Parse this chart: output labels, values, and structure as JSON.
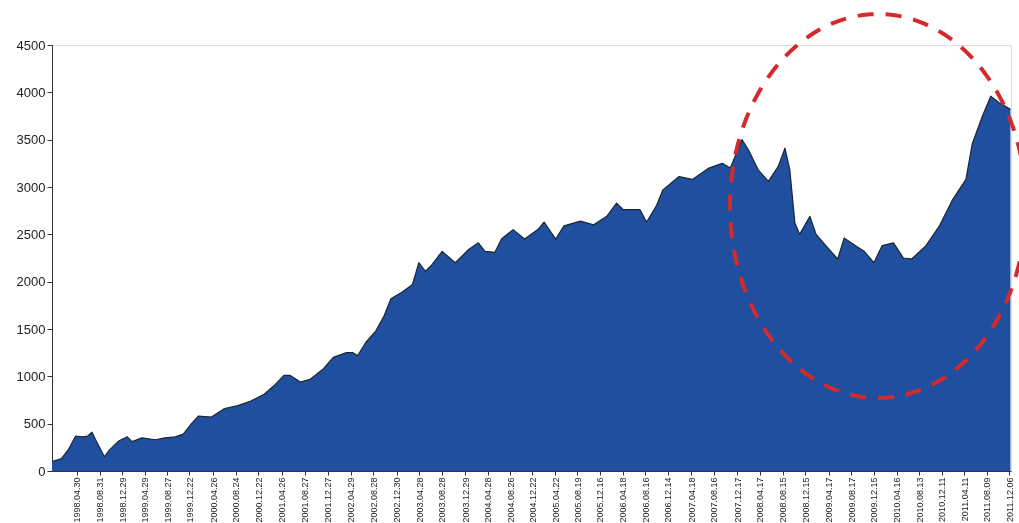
{
  "chart_data": {
    "type": "area",
    "xlim": [
      "1997-12-20",
      "2011-12-15"
    ],
    "ylim": [
      0,
      4500
    ],
    "yticks": [
      0,
      500,
      1000,
      1500,
      2000,
      2500,
      3000,
      3500,
      4000,
      4500
    ],
    "xticks": [
      {
        "value": "1998-04-30",
        "label": "1998.04.30"
      },
      {
        "value": "1998-08-31",
        "label": "1998.08.31"
      },
      {
        "value": "1998-12-29",
        "label": "1998.12.29"
      },
      {
        "value": "1999-04-29",
        "label": "1999.04.29"
      },
      {
        "value": "1999-08-27",
        "label": "1999.08.27"
      },
      {
        "value": "1999-12-22",
        "label": "1999.12.22"
      },
      {
        "value": "2000-04-26",
        "label": "2000.04.26"
      },
      {
        "value": "2000-08-24",
        "label": "2000.08.24"
      },
      {
        "value": "2000-12-22",
        "label": "2000.12.22"
      },
      {
        "value": "2001-04-26",
        "label": "2001.04.26"
      },
      {
        "value": "2001-08-27",
        "label": "2001.08.27"
      },
      {
        "value": "2001-12-27",
        "label": "2001.12.27"
      },
      {
        "value": "2002-04-29",
        "label": "2002.04.29"
      },
      {
        "value": "2002-08-28",
        "label": "2002.08.28"
      },
      {
        "value": "2002-12-30",
        "label": "2002.12.30"
      },
      {
        "value": "2003-04-28",
        "label": "2003.04.28"
      },
      {
        "value": "2003-08-28",
        "label": "2003.08.28"
      },
      {
        "value": "2003-12-29",
        "label": "2003.12.29"
      },
      {
        "value": "2004-04-28",
        "label": "2004.04.28"
      },
      {
        "value": "2004-08-26",
        "label": "2004.08.26"
      },
      {
        "value": "2004-12-22",
        "label": "2004.12.22"
      },
      {
        "value": "2005-04-22",
        "label": "2005.04.22"
      },
      {
        "value": "2005-08-19",
        "label": "2005.08.19"
      },
      {
        "value": "2005-12-16",
        "label": "2005.12.16"
      },
      {
        "value": "2006-04-18",
        "label": "2006.04.18"
      },
      {
        "value": "2006-08-16",
        "label": "2006.08.16"
      },
      {
        "value": "2006-12-14",
        "label": "2006.12.14"
      },
      {
        "value": "2007-04-18",
        "label": "2007.04.18"
      },
      {
        "value": "2007-08-16",
        "label": "2007.08.16"
      },
      {
        "value": "2007-12-17",
        "label": "2007.12.17"
      },
      {
        "value": "2008-04-17",
        "label": "2008.04.17"
      },
      {
        "value": "2008-08-15",
        "label": "2008.08.15"
      },
      {
        "value": "2008-12-15",
        "label": "2008.12.15"
      },
      {
        "value": "2009-04-17",
        "label": "2009.04.17"
      },
      {
        "value": "2009-08-17",
        "label": "2009.08.17"
      },
      {
        "value": "2009-12-15",
        "label": "2009.12.15"
      },
      {
        "value": "2010-04-16",
        "label": "2010.04.16"
      },
      {
        "value": "2010-08-13",
        "label": "2010.08.13"
      },
      {
        "value": "2010-12-11",
        "label": "2010.12.11"
      },
      {
        "value": "2011-04-11",
        "label": "2011.04.11"
      },
      {
        "value": "2011-08-09",
        "label": "2011.08.09"
      },
      {
        "value": "2011-12-06",
        "label": "2011.12.06"
      }
    ],
    "grid": false,
    "series": [
      {
        "color": "#1f4f9e",
        "x": [
          "1997-12-20",
          "1998-02-08",
          "1998-03-15",
          "1998-04-25",
          "1998-06-02",
          "1998-06-28",
          "1998-07-21",
          "1998-08-12",
          "1998-09-25",
          "1998-10-21",
          "1998-12-12",
          "1999-01-25",
          "1999-02-20",
          "1999-04-13",
          "1999-06-23",
          "1999-08-15",
          "1999-10-07",
          "1999-11-19",
          "2000-01-02",
          "2000-02-07",
          "2000-04-17",
          "2000-06-26",
          "2000-09-04",
          "2000-11-13",
          "2001-01-23",
          "2001-03-16",
          "2001-05-08",
          "2001-06-11",
          "2001-08-04",
          "2001-09-26",
          "2001-12-05",
          "2002-01-26",
          "2002-04-06",
          "2002-05-11",
          "2002-06-05",
          "2002-07-19",
          "2002-09-10",
          "2002-10-24",
          "2002-11-29",
          "2003-01-29",
          "2003-03-24",
          "2003-04-27",
          "2003-06-01",
          "2003-07-06",
          "2003-08-29",
          "2003-11-07",
          "2004-01-17",
          "2004-03-09",
          "2004-04-13",
          "2004-06-05",
          "2004-07-10",
          "2004-09-10",
          "2004-11-10",
          "2005-01-20",
          "2005-02-22",
          "2005-04-25",
          "2005-06-08",
          "2005-09-04",
          "2005-11-13",
          "2006-01-22",
          "2006-03-15",
          "2006-04-20",
          "2006-07-18",
          "2006-08-22",
          "2006-10-13",
          "2006-11-17",
          "2007-02-11",
          "2007-04-23",
          "2007-07-20",
          "2007-09-29",
          "2007-11-11",
          "2008-01-12",
          "2008-02-16",
          "2008-04-08",
          "2008-06-01",
          "2008-07-24",
          "2008-08-28",
          "2008-09-23",
          "2008-10-20",
          "2008-11-14",
          "2009-01-08",
          "2009-02-10",
          "2009-04-12",
          "2009-06-05",
          "2009-07-09",
          "2009-09-08",
          "2009-10-24",
          "2009-12-15",
          "2010-01-27",
          "2010-03-29",
          "2010-05-21",
          "2010-07-04",
          "2010-09-18",
          "2010-11-29",
          "2011-02-08",
          "2011-04-19",
          "2011-05-23",
          "2011-07-16",
          "2011-08-29",
          "2011-10-13",
          "2011-12-12"
        ],
        "values": [
          100,
          130,
          220,
          370,
          360,
          370,
          410,
          320,
          150,
          220,
          320,
          360,
          310,
          350,
          330,
          350,
          360,
          390,
          500,
          580,
          570,
          660,
          690,
          740,
          810,
          900,
          1010,
          1010,
          940,
          970,
          1080,
          1200,
          1250,
          1250,
          1220,
          1360,
          1480,
          1640,
          1820,
          1890,
          1970,
          2200,
          2110,
          2180,
          2320,
          2200,
          2340,
          2410,
          2320,
          2310,
          2450,
          2550,
          2450,
          2550,
          2630,
          2450,
          2590,
          2640,
          2600,
          2690,
          2830,
          2760,
          2760,
          2630,
          2800,
          2970,
          3110,
          3080,
          3200,
          3250,
          3200,
          3500,
          3390,
          3180,
          3060,
          3220,
          3410,
          3180,
          2620,
          2500,
          2690,
          2500,
          2360,
          2240,
          2460,
          2380,
          2320,
          2200,
          2380,
          2410,
          2250,
          2240,
          2380,
          2590,
          2870,
          3080,
          3460,
          3750,
          3960,
          3890,
          3820
        ]
      }
    ]
  }
}
